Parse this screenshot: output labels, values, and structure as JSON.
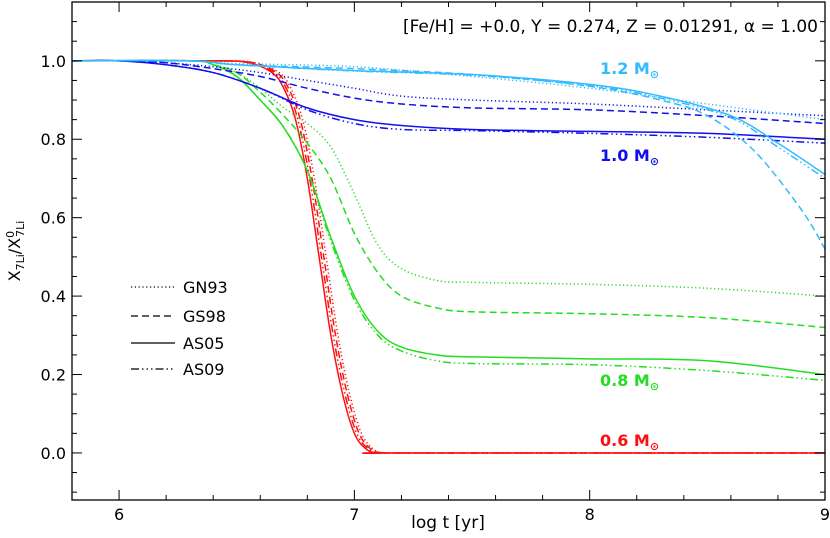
{
  "chart_data": {
    "type": "line",
    "title": "[Fe/H] = +0.0, Y = 0.274, Z = 0.01291, α = 1.00",
    "xlabel": "log t [yr]",
    "ylabel": {
      "main": "X",
      "sub": "7Li",
      "sep": "/",
      "main2": "X",
      "sup2": "0",
      "sub2": "7Li"
    },
    "xlim": [
      5.8,
      9.0
    ],
    "ylim": [
      -0.12,
      1.15
    ],
    "xticks": [
      "6",
      "7",
      "8",
      "9"
    ],
    "yticks": [
      "0.0",
      "0.2",
      "0.4",
      "0.6",
      "0.8",
      "1.0"
    ],
    "grid": false,
    "legend": {
      "placement": "middle-left",
      "entries": [
        {
          "label": "GN93",
          "style": "dotted"
        },
        {
          "label": "GS98",
          "style": "dashed"
        },
        {
          "label": "AS05",
          "style": "solid"
        },
        {
          "label": "AS09",
          "style": "dash-dot-dot-dot"
        }
      ]
    },
    "mass_labels": [
      {
        "text": "1.2 M",
        "sun": "⊙",
        "color": "#33bbff"
      },
      {
        "text": "1.0 M",
        "sun": "⊙",
        "color": "#1010ee"
      },
      {
        "text": "0.8 M",
        "sun": "⊙",
        "color": "#22dd22"
      },
      {
        "text": "0.6 M",
        "sun": "⊙",
        "color": "#ff1010"
      }
    ],
    "series": [
      {
        "mass": "0.6",
        "mix": "AS05",
        "color": "#ff1010",
        "style": "solid",
        "x": [
          5.8,
          6.4,
          6.55,
          6.65,
          6.7,
          6.75,
          6.8,
          6.85,
          6.9,
          6.95,
          7.0,
          7.05,
          7.1,
          7.2,
          9.0
        ],
        "y": [
          1.0,
          1.0,
          0.995,
          0.97,
          0.93,
          0.85,
          0.7,
          0.5,
          0.3,
          0.15,
          0.05,
          0.01,
          0.0,
          0.0,
          0.0
        ]
      },
      {
        "mass": "0.6",
        "mix": "AS09",
        "color": "#ff1010",
        "style": "dashdotdot",
        "x": [
          5.8,
          6.4,
          6.56,
          6.66,
          6.71,
          6.76,
          6.81,
          6.86,
          6.91,
          6.96,
          7.01,
          7.06,
          7.11,
          7.2,
          9.0
        ],
        "y": [
          1.0,
          1.0,
          0.995,
          0.97,
          0.93,
          0.85,
          0.7,
          0.5,
          0.3,
          0.15,
          0.05,
          0.01,
          0.0,
          0.0,
          0.0
        ]
      },
      {
        "mass": "0.6",
        "mix": "GS98",
        "color": "#ff1010",
        "style": "dashed",
        "x": [
          5.8,
          6.4,
          6.57,
          6.67,
          6.72,
          6.77,
          6.82,
          6.87,
          6.92,
          6.97,
          7.02,
          7.07,
          7.12,
          7.2,
          9.0
        ],
        "y": [
          1.0,
          1.0,
          0.995,
          0.97,
          0.93,
          0.85,
          0.7,
          0.5,
          0.3,
          0.15,
          0.05,
          0.01,
          0.0,
          0.0,
          0.0
        ]
      },
      {
        "mass": "0.6",
        "mix": "GN93",
        "color": "#ff1010",
        "style": "dotted",
        "x": [
          5.8,
          6.4,
          6.58,
          6.68,
          6.73,
          6.78,
          6.83,
          6.88,
          6.93,
          6.98,
          7.03,
          7.08,
          7.13,
          7.25,
          9.0
        ],
        "y": [
          1.0,
          1.0,
          0.995,
          0.97,
          0.93,
          0.85,
          0.7,
          0.5,
          0.3,
          0.15,
          0.05,
          0.01,
          0.0,
          0.0,
          0.0
        ]
      },
      {
        "mass": "0.8",
        "mix": "AS05",
        "color": "#22dd22",
        "style": "solid",
        "x": [
          5.8,
          6.3,
          6.4,
          6.5,
          6.6,
          6.7,
          6.8,
          6.9,
          7.0,
          7.1,
          7.2,
          7.35,
          7.5,
          8.0,
          8.5,
          9.0
        ],
        "y": [
          1.0,
          1.0,
          0.99,
          0.96,
          0.9,
          0.83,
          0.72,
          0.55,
          0.4,
          0.31,
          0.27,
          0.25,
          0.245,
          0.24,
          0.235,
          0.2
        ]
      },
      {
        "mass": "0.8",
        "mix": "AS09",
        "color": "#22dd22",
        "style": "dashdotdot",
        "x": [
          5.8,
          6.3,
          6.4,
          6.5,
          6.6,
          6.7,
          6.8,
          6.9,
          7.0,
          7.1,
          7.2,
          7.35,
          7.5,
          8.0,
          8.5,
          9.0
        ],
        "y": [
          1.0,
          1.0,
          0.99,
          0.96,
          0.9,
          0.83,
          0.72,
          0.54,
          0.39,
          0.3,
          0.26,
          0.235,
          0.228,
          0.225,
          0.21,
          0.185
        ]
      },
      {
        "mass": "0.8",
        "mix": "GS98",
        "color": "#22dd22",
        "style": "dashed",
        "x": [
          5.8,
          6.3,
          6.4,
          6.5,
          6.6,
          6.7,
          6.8,
          6.9,
          7.0,
          7.1,
          7.2,
          7.35,
          7.5,
          8.0,
          8.5,
          9.0
        ],
        "y": [
          1.0,
          1.0,
          0.99,
          0.97,
          0.92,
          0.86,
          0.79,
          0.7,
          0.56,
          0.46,
          0.4,
          0.37,
          0.36,
          0.355,
          0.345,
          0.32
        ]
      },
      {
        "mass": "0.8",
        "mix": "GN93",
        "color": "#22dd22",
        "style": "dotted",
        "x": [
          5.8,
          6.3,
          6.4,
          6.5,
          6.6,
          6.7,
          6.8,
          6.9,
          7.0,
          7.1,
          7.2,
          7.35,
          7.5,
          8.0,
          8.5,
          9.0
        ],
        "y": [
          1.0,
          1.0,
          0.99,
          0.97,
          0.93,
          0.88,
          0.84,
          0.78,
          0.66,
          0.53,
          0.47,
          0.44,
          0.435,
          0.43,
          0.42,
          0.4
        ]
      },
      {
        "mass": "1.0",
        "mix": "AS05",
        "color": "#1010ee",
        "style": "solid",
        "x": [
          5.8,
          6.0,
          6.2,
          6.4,
          6.6,
          6.8,
          7.0,
          7.2,
          7.5,
          8.0,
          8.5,
          9.0
        ],
        "y": [
          1.0,
          1.0,
          0.99,
          0.97,
          0.93,
          0.88,
          0.85,
          0.835,
          0.825,
          0.82,
          0.815,
          0.8
        ]
      },
      {
        "mass": "1.0",
        "mix": "AS09",
        "color": "#1010ee",
        "style": "dashdotdot",
        "x": [
          5.8,
          6.0,
          6.2,
          6.4,
          6.6,
          6.8,
          7.0,
          7.2,
          7.5,
          8.0,
          8.5,
          9.0
        ],
        "y": [
          1.0,
          1.0,
          0.99,
          0.97,
          0.93,
          0.875,
          0.84,
          0.825,
          0.822,
          0.815,
          0.805,
          0.79
        ]
      },
      {
        "mass": "1.0",
        "mix": "GS98",
        "color": "#1010ee",
        "style": "dashed",
        "x": [
          5.8,
          6.0,
          6.2,
          6.4,
          6.6,
          6.8,
          7.0,
          7.2,
          7.5,
          8.0,
          8.5,
          9.0
        ],
        "y": [
          1.0,
          1.0,
          0.995,
          0.98,
          0.96,
          0.93,
          0.905,
          0.89,
          0.88,
          0.875,
          0.86,
          0.84
        ]
      },
      {
        "mass": "1.0",
        "mix": "GN93",
        "color": "#1010ee",
        "style": "dotted",
        "x": [
          5.8,
          6.0,
          6.2,
          6.4,
          6.6,
          6.8,
          7.0,
          7.2,
          7.5,
          8.0,
          8.5,
          9.0
        ],
        "y": [
          1.0,
          1.0,
          0.995,
          0.985,
          0.97,
          0.95,
          0.93,
          0.91,
          0.9,
          0.89,
          0.875,
          0.86
        ]
      },
      {
        "mass": "1.2",
        "mix": "AS05",
        "color": "#33bbff",
        "style": "solid",
        "x": [
          5.8,
          6.3,
          6.5,
          7.0,
          7.5,
          8.0,
          8.3,
          8.6,
          8.8,
          9.0
        ],
        "y": [
          1.0,
          1.0,
          0.99,
          0.975,
          0.965,
          0.94,
          0.91,
          0.86,
          0.79,
          0.71
        ]
      },
      {
        "mass": "1.2",
        "mix": "AS09",
        "color": "#33bbff",
        "style": "dashdotdot",
        "x": [
          5.8,
          6.3,
          6.5,
          7.0,
          7.5,
          8.0,
          8.3,
          8.6,
          8.8,
          9.0
        ],
        "y": [
          1.0,
          1.0,
          0.99,
          0.974,
          0.963,
          0.937,
          0.905,
          0.855,
          0.78,
          0.7
        ]
      },
      {
        "mass": "1.2",
        "mix": "GS98",
        "color": "#33bbff",
        "style": "dashed",
        "x": [
          5.8,
          6.3,
          6.5,
          7.0,
          7.5,
          8.0,
          8.3,
          8.5,
          8.7,
          8.9,
          9.0
        ],
        "y": [
          1.0,
          1.0,
          0.99,
          0.98,
          0.965,
          0.935,
          0.9,
          0.86,
          0.77,
          0.62,
          0.52
        ]
      },
      {
        "mass": "1.2",
        "mix": "GN93",
        "color": "#33bbff",
        "style": "dotted",
        "x": [
          5.8,
          6.3,
          6.5,
          7.0,
          7.5,
          8.0,
          8.5,
          9.0
        ],
        "y": [
          1.0,
          1.0,
          0.993,
          0.985,
          0.96,
          0.93,
          0.89,
          0.85
        ]
      }
    ]
  }
}
